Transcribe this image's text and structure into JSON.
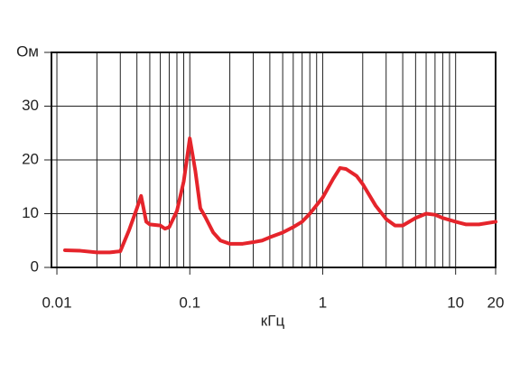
{
  "chart_data": {
    "type": "line",
    "x_label": "кГц",
    "xscale": "log",
    "xlim": [
      0.0091,
      20
    ],
    "ylim": [
      0,
      40
    ],
    "xticks": [
      0.01,
      0.1,
      1,
      10,
      20
    ],
    "xminorticks": [
      0.02,
      0.03,
      0.04,
      0.05,
      0.06,
      0.07,
      0.08,
      0.09,
      0.2,
      0.3,
      0.4,
      0.5,
      0.6,
      0.7,
      0.8,
      0.9,
      2,
      3,
      4,
      5,
      6,
      7,
      8,
      9
    ],
    "yticks": [
      0,
      10,
      20,
      30,
      {
        "value": 40,
        "label": "Ом"
      }
    ],
    "grid": true,
    "series": [
      {
        "color": "#e5242b",
        "x": [
          0.0115,
          0.015,
          0.02,
          0.025,
          0.03,
          0.035,
          0.04,
          0.043,
          0.047,
          0.05,
          0.06,
          0.065,
          0.07,
          0.08,
          0.09,
          0.1,
          0.11,
          0.12,
          0.13,
          0.15,
          0.17,
          0.2,
          0.25,
          0.3,
          0.35,
          0.4,
          0.5,
          0.6,
          0.7,
          0.8,
          1.0,
          1.2,
          1.35,
          1.5,
          1.8,
          2.0,
          2.5,
          3.0,
          3.5,
          4,
          5,
          6,
          7,
          8,
          10,
          12,
          15,
          20
        ],
        "values": [
          3.2,
          3.1,
          2.8,
          2.8,
          3.0,
          7,
          11,
          13.3,
          8.5,
          8,
          7.8,
          7.2,
          7.5,
          10.5,
          16,
          24,
          18,
          11,
          9.5,
          6.5,
          5,
          4.4,
          4.4,
          4.7,
          5,
          5.6,
          6.5,
          7.5,
          8.5,
          10,
          13,
          16.5,
          18.5,
          18.3,
          17,
          15.5,
          11.5,
          9,
          7.8,
          7.8,
          9.2,
          10,
          9.8,
          9.2,
          8.5,
          8,
          8,
          8.5
        ]
      }
    ]
  }
}
